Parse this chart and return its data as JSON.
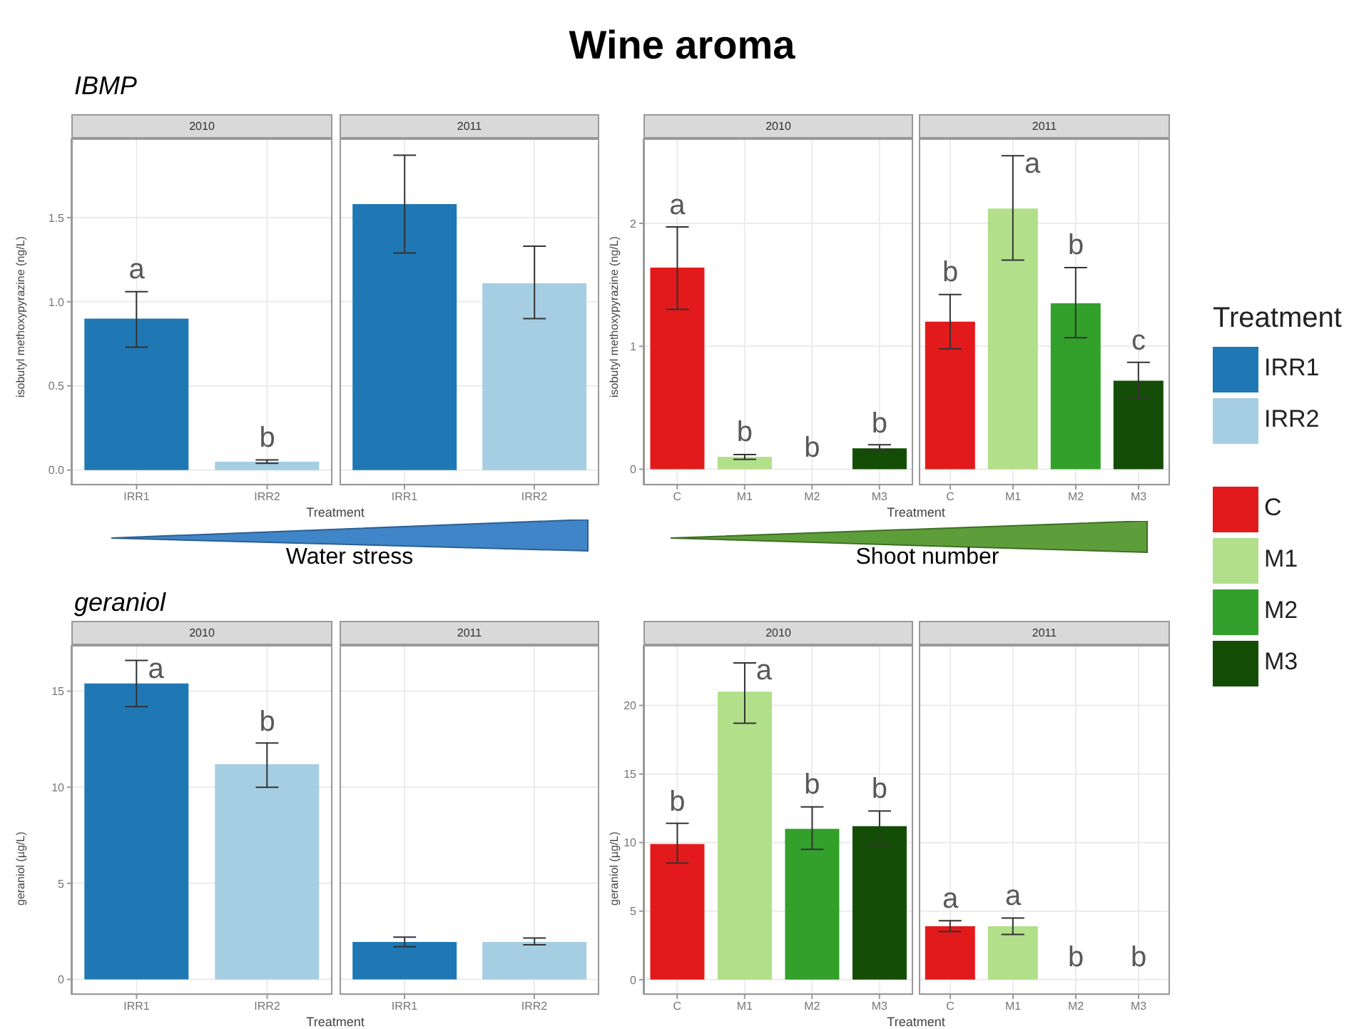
{
  "chart_data": [
    {
      "type": "bar",
      "title": "2010",
      "annotations": [
        "Wine aroma",
        "IBMP",
        "Water stress"
      ],
      "xlabel": "Treatment",
      "ylabel": "isobutyl methoxypyrazine (ng/L)",
      "legend_title": "Treatment",
      "legend": "right",
      "grid": true,
      "stacked": true,
      "categories": [
        "IRR1",
        "IRR2"
      ],
      "series": [
        {
          "name": "IRR1",
          "color": "#1f78b4",
          "values": [
            0.9,
            null
          ],
          "errors": [
            [
              0.73,
              1.06
            ],
            null
          ],
          "value_labels": [
            "a",
            null
          ]
        },
        {
          "name": "IRR2",
          "color": "#a6cee3",
          "values": [
            null,
            0.05
          ],
          "errors": [
            null,
            [
              0.04,
              0.06
            ]
          ],
          "value_labels": [
            null,
            "b"
          ]
        }
      ],
      "ylim": [
        -0.09,
        1.97
      ],
      "yticks": [
        {
          "value": 0,
          "label": "0.0"
        },
        {
          "value": 0.5,
          "label": "0.5"
        },
        {
          "value": 1,
          "label": "1.0"
        },
        {
          "value": 1.5,
          "label": "1.5"
        }
      ]
    },
    {
      "type": "bar",
      "title": "2011",
      "grid": true,
      "tick_labels": "x",
      "stacked": true,
      "categories": [
        "IRR1",
        "IRR2"
      ],
      "series": [
        {
          "color": "#1f78b4",
          "values": [
            1.58,
            null
          ],
          "errors": [
            [
              1.29,
              1.87
            ],
            null
          ]
        },
        {
          "color": "#a6cee3",
          "values": [
            null,
            1.11
          ],
          "errors": [
            null,
            [
              0.9,
              1.33
            ]
          ]
        }
      ],
      "ylim": [
        -0.09,
        1.97
      ],
      "yticks": [
        {
          "value": 0,
          "label": null
        },
        {
          "value": 0.5,
          "label": null
        },
        {
          "value": 1,
          "label": null
        },
        {
          "value": 1.5,
          "label": null
        }
      ]
    },
    {
      "type": "bar",
      "title": "2010",
      "annotations": [
        "Shoot number"
      ],
      "xlabel": "Treatment",
      "ylabel": "isobutyl methoxypyrazine (ng/L)",
      "legend": "right",
      "grid": true,
      "stacked": true,
      "categories": [
        "C",
        "M1",
        "M2",
        "M3"
      ],
      "series": [
        {
          "name": "C",
          "color": "#e31a1c",
          "values": [
            1.64,
            null,
            null,
            null
          ],
          "errors": [
            [
              1.3,
              1.97
            ],
            null,
            null,
            null
          ],
          "value_labels": [
            "a",
            null,
            null,
            null
          ]
        },
        {
          "name": "M1",
          "color": "#b2df8a",
          "values": [
            null,
            0.1,
            null,
            null
          ],
          "errors": [
            null,
            [
              0.08,
              0.12
            ],
            null,
            null
          ],
          "value_labels": [
            null,
            "b",
            null,
            null
          ]
        },
        {
          "name": "M2",
          "color": "#33a02c",
          "values": [
            null,
            null,
            0,
            null
          ],
          "errors": [
            null,
            null,
            [
              0,
              0
            ],
            null
          ],
          "value_labels": [
            null,
            null,
            "b",
            null
          ]
        },
        {
          "name": "M3",
          "color": "#144d05",
          "values": [
            null,
            null,
            null,
            0.17
          ],
          "errors": [
            null,
            null,
            null,
            [
              0.15,
              0.2
            ]
          ],
          "value_labels": [
            null,
            null,
            null,
            "b"
          ]
        }
      ],
      "ylim": [
        -0.13,
        2.69
      ],
      "yticks": [
        0,
        1,
        2
      ]
    },
    {
      "type": "bar",
      "title": "2011",
      "grid": true,
      "tick_labels": "x",
      "stacked": true,
      "categories": [
        "C",
        "M1",
        "M2",
        "M3"
      ],
      "series": [
        {
          "color": "#e31a1c",
          "values": [
            1.2,
            null,
            null,
            null
          ],
          "errors": [
            [
              0.98,
              1.42
            ],
            null,
            null,
            null
          ],
          "value_labels": [
            "b",
            null,
            null,
            null
          ]
        },
        {
          "color": "#b2df8a",
          "values": [
            null,
            2.12,
            null,
            null
          ],
          "errors": [
            null,
            [
              1.7,
              2.55
            ],
            null,
            null
          ],
          "value_labels": [
            null,
            "a",
            null,
            null
          ]
        },
        {
          "color": "#33a02c",
          "values": [
            null,
            null,
            1.35,
            null
          ],
          "errors": [
            null,
            null,
            [
              1.07,
              1.64
            ],
            null
          ],
          "value_labels": [
            null,
            null,
            "b",
            null
          ]
        },
        {
          "color": "#144d05",
          "values": [
            null,
            null,
            null,
            0.72
          ],
          "errors": [
            null,
            null,
            null,
            [
              0.58,
              0.87
            ]
          ],
          "value_labels": [
            null,
            null,
            null,
            "c"
          ]
        }
      ],
      "ylim": [
        -0.13,
        2.69
      ],
      "yticks": [
        {
          "value": 0,
          "label": null
        },
        {
          "value": 1,
          "label": null
        },
        {
          "value": 2,
          "label": null
        }
      ]
    },
    {
      "type": "bar",
      "title": "2010",
      "annotations": [
        "geraniol"
      ],
      "xlabel": "Treatment",
      "ylabel": "geraniol (µg/L)",
      "grid": true,
      "stacked": true,
      "categories": [
        "IRR1",
        "IRR2"
      ],
      "series": [
        {
          "color": "#1f78b4",
          "values": [
            15.4,
            null
          ],
          "errors": [
            [
              14.2,
              16.6
            ],
            null
          ],
          "value_labels": [
            "a",
            null
          ]
        },
        {
          "color": "#a6cee3",
          "values": [
            null,
            11.2
          ],
          "errors": [
            null,
            [
              10,
              12.3
            ]
          ],
          "value_labels": [
            null,
            "b"
          ]
        }
      ],
      "ylim": [
        -0.8,
        17.4
      ],
      "yticks": [
        0,
        5,
        10,
        15
      ]
    },
    {
      "type": "bar",
      "title": "2011",
      "grid": true,
      "tick_labels": "x",
      "stacked": true,
      "categories": [
        "IRR1",
        "IRR2"
      ],
      "series": [
        {
          "color": "#1f78b4",
          "values": [
            1.95,
            null
          ],
          "errors": [
            [
              1.7,
              2.2
            ],
            null
          ]
        },
        {
          "color": "#a6cee3",
          "values": [
            null,
            1.95
          ],
          "errors": [
            null,
            [
              1.8,
              2.15
            ]
          ]
        }
      ],
      "ylim": [
        -0.8,
        17.4
      ],
      "yticks": [
        {
          "value": 0,
          "label": null
        },
        {
          "value": 5,
          "label": null
        },
        {
          "value": 10,
          "label": null
        },
        {
          "value": 15,
          "label": null
        }
      ]
    },
    {
      "type": "bar",
      "title": "2010",
      "xlabel": "Treatment",
      "ylabel": "geraniol (µg/L)",
      "grid": true,
      "stacked": true,
      "categories": [
        "C",
        "M1",
        "M2",
        "M3"
      ],
      "series": [
        {
          "color": "#e31a1c",
          "values": [
            9.9,
            null,
            null,
            null
          ],
          "errors": [
            [
              8.5,
              11.4
            ],
            null,
            null,
            null
          ],
          "value_labels": [
            "b",
            null,
            null,
            null
          ]
        },
        {
          "color": "#b2df8a",
          "values": [
            null,
            21,
            null,
            null
          ],
          "errors": [
            null,
            [
              18.7,
              23.1
            ],
            null,
            null
          ],
          "value_labels": [
            null,
            "a",
            null,
            null
          ]
        },
        {
          "color": "#33a02c",
          "values": [
            null,
            null,
            11,
            null
          ],
          "errors": [
            null,
            null,
            [
              9.5,
              12.6
            ],
            null
          ],
          "value_labels": [
            null,
            null,
            "b",
            null
          ]
        },
        {
          "color": "#144d05",
          "values": [
            null,
            null,
            null,
            11.2
          ],
          "errors": [
            null,
            null,
            null,
            [
              9.9,
              12.3
            ]
          ],
          "value_labels": [
            null,
            null,
            null,
            "b"
          ]
        }
      ],
      "ylim": [
        -1.1,
        24.4
      ],
      "yticks": [
        0,
        5,
        10,
        15,
        20
      ]
    },
    {
      "type": "bar",
      "title": "2011",
      "grid": true,
      "tick_labels": "x",
      "stacked": true,
      "categories": [
        "C",
        "M1",
        "M2",
        "M3"
      ],
      "series": [
        {
          "color": "#e31a1c",
          "values": [
            3.9,
            null,
            null,
            null
          ],
          "errors": [
            [
              3.5,
              4.3
            ],
            null,
            null,
            null
          ],
          "value_labels": [
            "a",
            null,
            null,
            null
          ]
        },
        {
          "color": "#b2df8a",
          "values": [
            null,
            3.9,
            null,
            null
          ],
          "errors": [
            null,
            [
              3.3,
              4.5
            ],
            null,
            null
          ],
          "value_labels": [
            null,
            "a",
            null,
            null
          ]
        },
        {
          "color": "#33a02c",
          "values": [
            null,
            null,
            0,
            null
          ],
          "errors": [
            null,
            null,
            [
              0,
              0
            ],
            null
          ],
          "value_labels": [
            null,
            null,
            "b",
            null
          ]
        },
        {
          "color": "#144d05",
          "values": [
            null,
            null,
            null,
            0
          ],
          "errors": [
            null,
            null,
            null,
            [
              0,
              0
            ]
          ],
          "value_labels": [
            null,
            null,
            null,
            "b"
          ]
        }
      ],
      "ylim": [
        -1.1,
        24.4
      ],
      "yticks": [
        {
          "value": 0,
          "label": null
        },
        {
          "value": 5,
          "label": null
        },
        {
          "value": 10,
          "label": null
        },
        {
          "value": 15,
          "label": null
        },
        {
          "value": 20,
          "label": null
        }
      ]
    }
  ]
}
